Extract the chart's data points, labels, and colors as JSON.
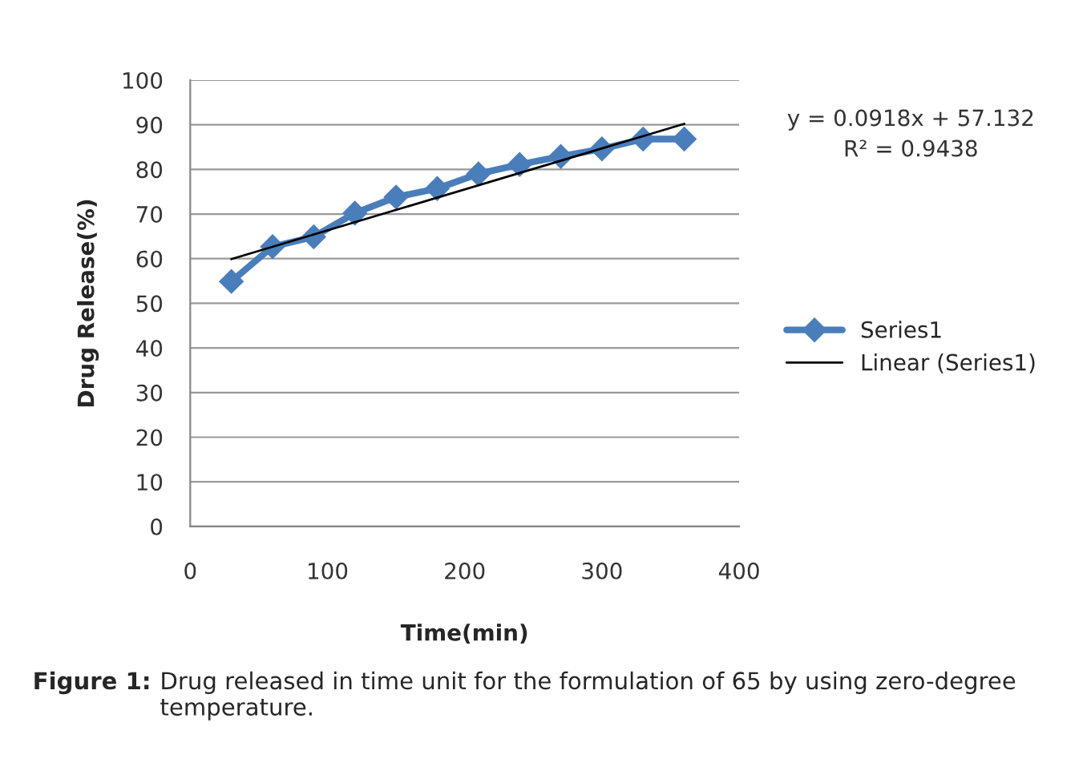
{
  "chart_data": {
    "type": "line",
    "xlabel": "Time(min)",
    "ylabel": "Drug Release(%)",
    "series": [
      {
        "name": "Series1",
        "color": "#4a7ebb",
        "marker": "diamond",
        "x": [
          30,
          60,
          90,
          120,
          150,
          180,
          210,
          240,
          270,
          300,
          330,
          360
        ],
        "values": [
          54.9,
          62.7,
          64.9,
          70.2,
          73.8,
          75.7,
          79,
          81.1,
          82.9,
          84.6,
          86.8,
          86.8
        ]
      },
      {
        "name": "Linear (Series1)",
        "color": "#000000",
        "marker": "none",
        "x": [
          30,
          360
        ],
        "values": [
          59.9,
          90.2
        ]
      }
    ],
    "xlim": [
      0,
      400
    ],
    "xticks": [
      0,
      100,
      200,
      300,
      400
    ],
    "ylim": [
      0,
      100
    ],
    "yticks": [
      0,
      10,
      20,
      30,
      40,
      50,
      60,
      70,
      80,
      90,
      100
    ],
    "grid": "y",
    "legend": "right",
    "annotations": [
      "y = 0.0918x + 57.132",
      "R² = 0.9438",
      "Figure 1:",
      "Drug released in time unit for the formulation of 65 by using zero-degree temperature."
    ]
  }
}
